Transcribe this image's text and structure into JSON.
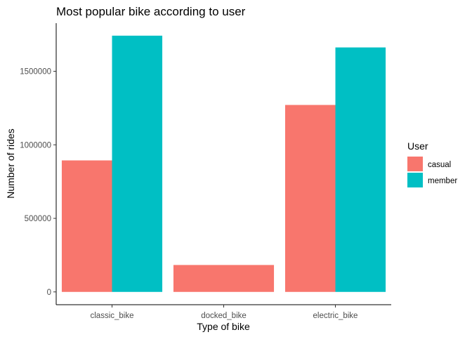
{
  "chart_data": {
    "type": "bar",
    "title": "Most popular bike according to user",
    "xlabel": "Type of bike",
    "ylabel": "Number of rides",
    "categories": [
      "classic_bike",
      "docked_bike",
      "electric_bike"
    ],
    "yticks": [
      0,
      500000,
      1000000,
      1500000
    ],
    "ytick_labels": [
      "0",
      "500000",
      "1000000",
      "1500000"
    ],
    "ylim": [
      -87000,
      1827000
    ],
    "grid": false,
    "legend": {
      "title": "User",
      "position": "right"
    },
    "series": [
      {
        "name": "casual",
        "color": "#F8766D",
        "values": [
          894000,
          183000,
          1271000
        ]
      },
      {
        "name": "member",
        "color": "#00BFC4",
        "values": [
          1742000,
          null,
          1662000
        ]
      }
    ]
  }
}
